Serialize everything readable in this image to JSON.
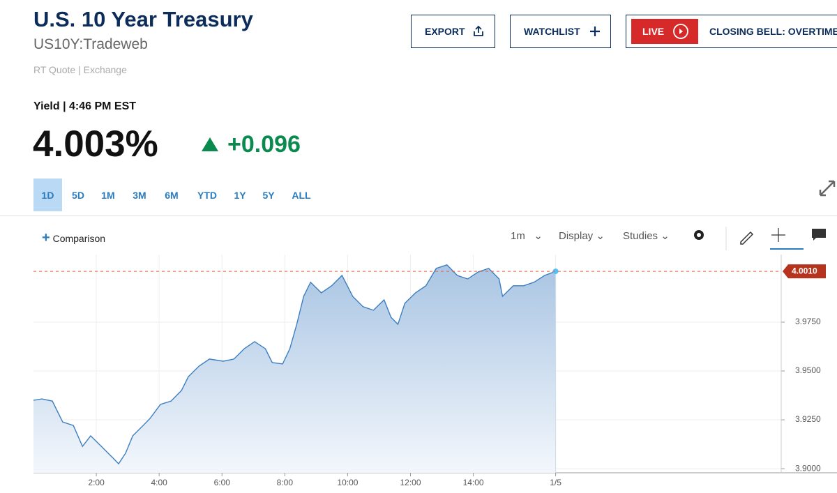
{
  "header": {
    "title": "U.S. 10 Year Treasury",
    "symbol": "US10Y:Tradeweb",
    "quote_info": "RT Quote | Exchange",
    "buttons": {
      "export": "EXPORT",
      "watchlist": "WATCHLIST",
      "live": "LIVE",
      "live_show": "CLOSING BELL: OVERTIME"
    }
  },
  "quote": {
    "label": "Yield | 4:46 PM EST",
    "price": "4.003%",
    "change": "+0.096"
  },
  "ranges": {
    "items": [
      "1D",
      "5D",
      "1M",
      "3M",
      "6M",
      "YTD",
      "1Y",
      "5Y",
      "ALL"
    ],
    "active": "1D"
  },
  "toolbar": {
    "comparison": "Comparison",
    "interval": "1m",
    "display": "Display",
    "studies": "Studies"
  },
  "chart_data": {
    "type": "area",
    "grid": true,
    "x": [
      0,
      0.27,
      0.6,
      0.93,
      1.27,
      1.56,
      1.82,
      2.16,
      2.49,
      2.71,
      2.93,
      3.16,
      3.49,
      3.71,
      4.04,
      4.38,
      4.71,
      4.93,
      5.27,
      5.6,
      6.04,
      6.38,
      6.71,
      7.04,
      7.38,
      7.6,
      7.93,
      8.16,
      8.38,
      8.6,
      8.82,
      9.16,
      9.49,
      9.82,
      10.16,
      10.49,
      10.82,
      11.16,
      11.38,
      11.6,
      11.82,
      12.16,
      12.49,
      12.82,
      13.16,
      13.49,
      13.82,
      14.16,
      14.49,
      14.82,
      14.93,
      15.27,
      15.6,
      15.93,
      16.27,
      16.62
    ],
    "series": [
      {
        "name": "US10Y",
        "color": "#3c7ebf",
        "values": [
          3.935,
          3.9357,
          3.9346,
          3.9239,
          3.9221,
          3.9114,
          3.9168,
          3.9114,
          3.9061,
          3.9025,
          3.9079,
          3.9168,
          3.9221,
          3.9257,
          3.9329,
          3.9346,
          3.94,
          3.9471,
          3.9525,
          3.9561,
          3.955,
          3.9561,
          3.9614,
          3.965,
          3.9614,
          3.9543,
          3.9536,
          3.9614,
          3.9739,
          3.9882,
          3.9954,
          3.99,
          3.9936,
          3.9989,
          3.9882,
          3.9829,
          3.9811,
          3.9864,
          3.9775,
          3.9739,
          3.9846,
          3.99,
          3.9936,
          4.0025,
          4.0043,
          3.9989,
          3.9971,
          4.0007,
          4.0025,
          3.9971,
          3.9882,
          3.9936,
          3.9936,
          3.9954,
          3.9989,
          4.001
        ]
      }
    ],
    "xlim": [
      0,
      23.8
    ],
    "xticks": [
      {
        "value": 2,
        "label": "2:00"
      },
      {
        "value": 4,
        "label": "4:00"
      },
      {
        "value": 6,
        "label": "6:00"
      },
      {
        "value": 8,
        "label": "8:00"
      },
      {
        "value": 10,
        "label": "10:00"
      },
      {
        "value": 12,
        "label": "12:00"
      },
      {
        "value": 14,
        "label": "14:00"
      },
      {
        "value": 16.62,
        "label": "1/5"
      }
    ],
    "ylim": [
      3.8979,
      4.0096
    ],
    "yticks": [
      {
        "value": 3.9,
        "label": "3.9000"
      },
      {
        "value": 3.925,
        "label": "3.9250"
      },
      {
        "value": 3.95,
        "label": "3.9500"
      },
      {
        "value": 3.975,
        "label": "3.9750"
      }
    ],
    "last_value": {
      "value": 4.001,
      "label": "4.0010"
    },
    "last_value_color": "#e8613c"
  }
}
